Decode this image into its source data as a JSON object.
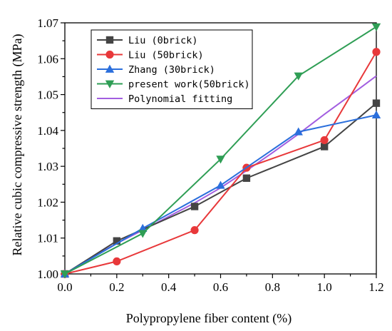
{
  "chart_data": {
    "type": "line",
    "xlabel": "Polypropylene fiber content (%)",
    "ylabel": "Relative cubic compressive strength (MPa)",
    "xlim": [
      0.0,
      1.2
    ],
    "ylim": [
      1.0,
      1.07
    ],
    "x_ticks": [
      "0.0",
      "0.2",
      "0.4",
      "0.6",
      "0.8",
      "1.0",
      "1.2"
    ],
    "y_ticks": [
      "1.00",
      "1.01",
      "1.02",
      "1.03",
      "1.04",
      "1.05",
      "1.06",
      "1.07"
    ],
    "x_tick_values": [
      0.0,
      0.2,
      0.4,
      0.6,
      0.8,
      1.0,
      1.2
    ],
    "y_tick_values": [
      1.0,
      1.01,
      1.02,
      1.03,
      1.04,
      1.05,
      1.06,
      1.07
    ],
    "grid": false,
    "legend_position": "top-left",
    "series": [
      {
        "name": "Liu (0brick)",
        "color": "#444444",
        "marker": "square",
        "points": [
          [
            0.0,
            1.0
          ],
          [
            0.2,
            1.0092
          ],
          [
            0.5,
            1.0188
          ],
          [
            0.7,
            1.0267
          ],
          [
            1.0,
            1.0355
          ],
          [
            1.2,
            1.0476
          ]
        ]
      },
      {
        "name": "Liu (50brick)",
        "color": "#e8383a",
        "marker": "circle",
        "points": [
          [
            0.0,
            1.0
          ],
          [
            0.2,
            1.0035
          ],
          [
            0.5,
            1.0122
          ],
          [
            0.7,
            1.0296
          ],
          [
            1.0,
            1.0373
          ],
          [
            1.2,
            1.0619
          ]
        ]
      },
      {
        "name": "Zhang (30brick)",
        "color": "#2b6fdc",
        "marker": "triangle-up",
        "points": [
          [
            0.0,
            1.0
          ],
          [
            0.3,
            1.0127
          ],
          [
            0.6,
            1.0247
          ],
          [
            0.9,
            1.0396
          ],
          [
            1.2,
            1.0443
          ]
        ]
      },
      {
        "name": "present work(50brick)",
        "color": "#2f9e55",
        "marker": "triangle-down",
        "points": [
          [
            0.0,
            1.0
          ],
          [
            0.3,
            1.0113
          ],
          [
            0.6,
            1.032
          ],
          [
            0.9,
            1.0552
          ],
          [
            1.2,
            1.0689
          ]
        ]
      },
      {
        "name": "Polynomial fitting",
        "color": "#a25ee0",
        "marker": "none",
        "points": [
          [
            0.0,
            1.0
          ],
          [
            0.1,
            1.0045
          ],
          [
            0.2,
            1.0085
          ],
          [
            0.3,
            1.0122
          ],
          [
            0.4,
            1.016
          ],
          [
            0.5,
            1.0198
          ],
          [
            0.6,
            1.024
          ],
          [
            0.7,
            1.0288
          ],
          [
            0.8,
            1.0338
          ],
          [
            0.9,
            1.039
          ],
          [
            1.0,
            1.0445
          ],
          [
            1.1,
            1.0498
          ],
          [
            1.2,
            1.0552
          ]
        ]
      }
    ]
  }
}
